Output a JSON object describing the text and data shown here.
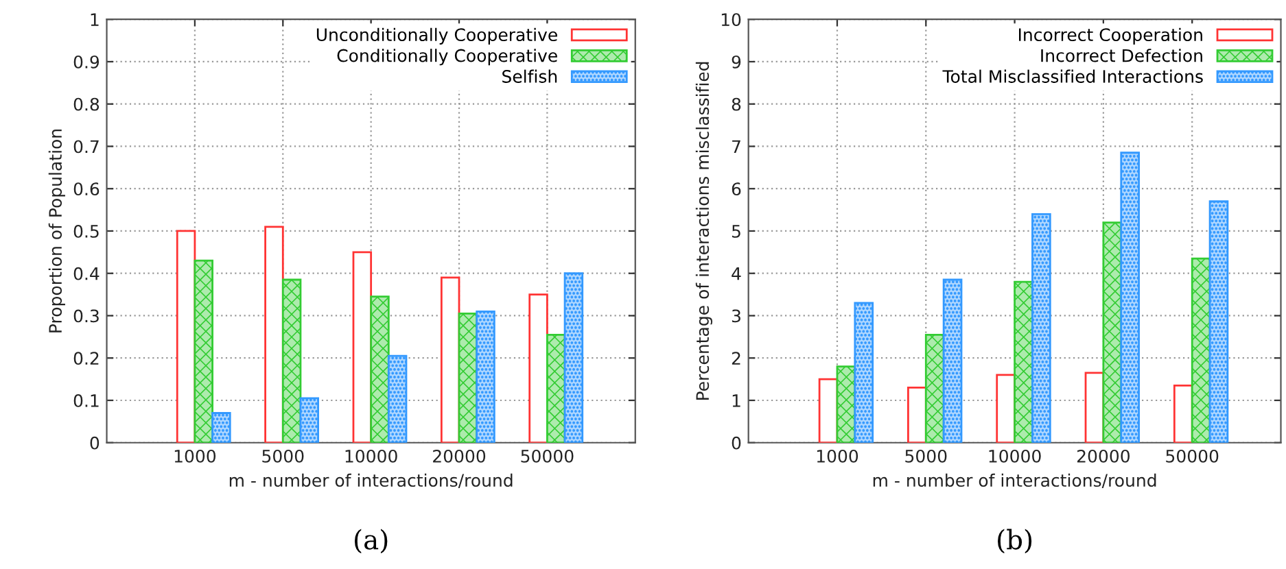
{
  "chart_data": [
    {
      "type": "bar",
      "categories": [
        "1000",
        "5000",
        "10000",
        "20000",
        "50000"
      ],
      "xlabel": "m - number of interactions/round",
      "ylabel": "Proportion of Population",
      "ylim": [
        0,
        1
      ],
      "yticks": [
        0,
        0.1,
        0.2,
        0.3,
        0.4,
        0.5,
        0.6,
        0.7,
        0.8,
        0.9,
        1
      ],
      "grid": true,
      "legend": "top right",
      "annotations": [
        "(a)"
      ],
      "series": [
        {
          "name": "Unconditionally Cooperative",
          "color": "#ff3333",
          "values": [
            0.5,
            0.51,
            0.45,
            0.39,
            0.35
          ]
        },
        {
          "name": "Conditionally Cooperative",
          "color": "#33cc33",
          "values": [
            0.43,
            0.385,
            0.345,
            0.305,
            0.255
          ]
        },
        {
          "name": "Selfish",
          "color": "#3399ff",
          "values": [
            0.07,
            0.105,
            0.205,
            0.31,
            0.4
          ]
        }
      ]
    },
    {
      "type": "bar",
      "categories": [
        "1000",
        "5000",
        "10000",
        "20000",
        "50000"
      ],
      "xlabel": "m - number of interactions/round",
      "ylabel": "Percentage of interactions misclassified",
      "ylim": [
        0,
        10
      ],
      "yticks": [
        0,
        1,
        2,
        3,
        4,
        5,
        6,
        7,
        8,
        9,
        10
      ],
      "grid": true,
      "legend": "top right",
      "annotations": [
        "(b)"
      ],
      "series": [
        {
          "name": "Incorrect Cooperation",
          "color": "#ff3333",
          "values": [
            1.5,
            1.3,
            1.6,
            1.65,
            1.35
          ]
        },
        {
          "name": "Incorrect Defection",
          "color": "#33cc33",
          "values": [
            1.8,
            2.55,
            3.8,
            5.2,
            4.35
          ]
        },
        {
          "name": "Total Misclassified Interactions",
          "color": "#3399ff",
          "values": [
            3.3,
            3.85,
            5.4,
            6.85,
            5.7
          ]
        }
      ]
    }
  ]
}
